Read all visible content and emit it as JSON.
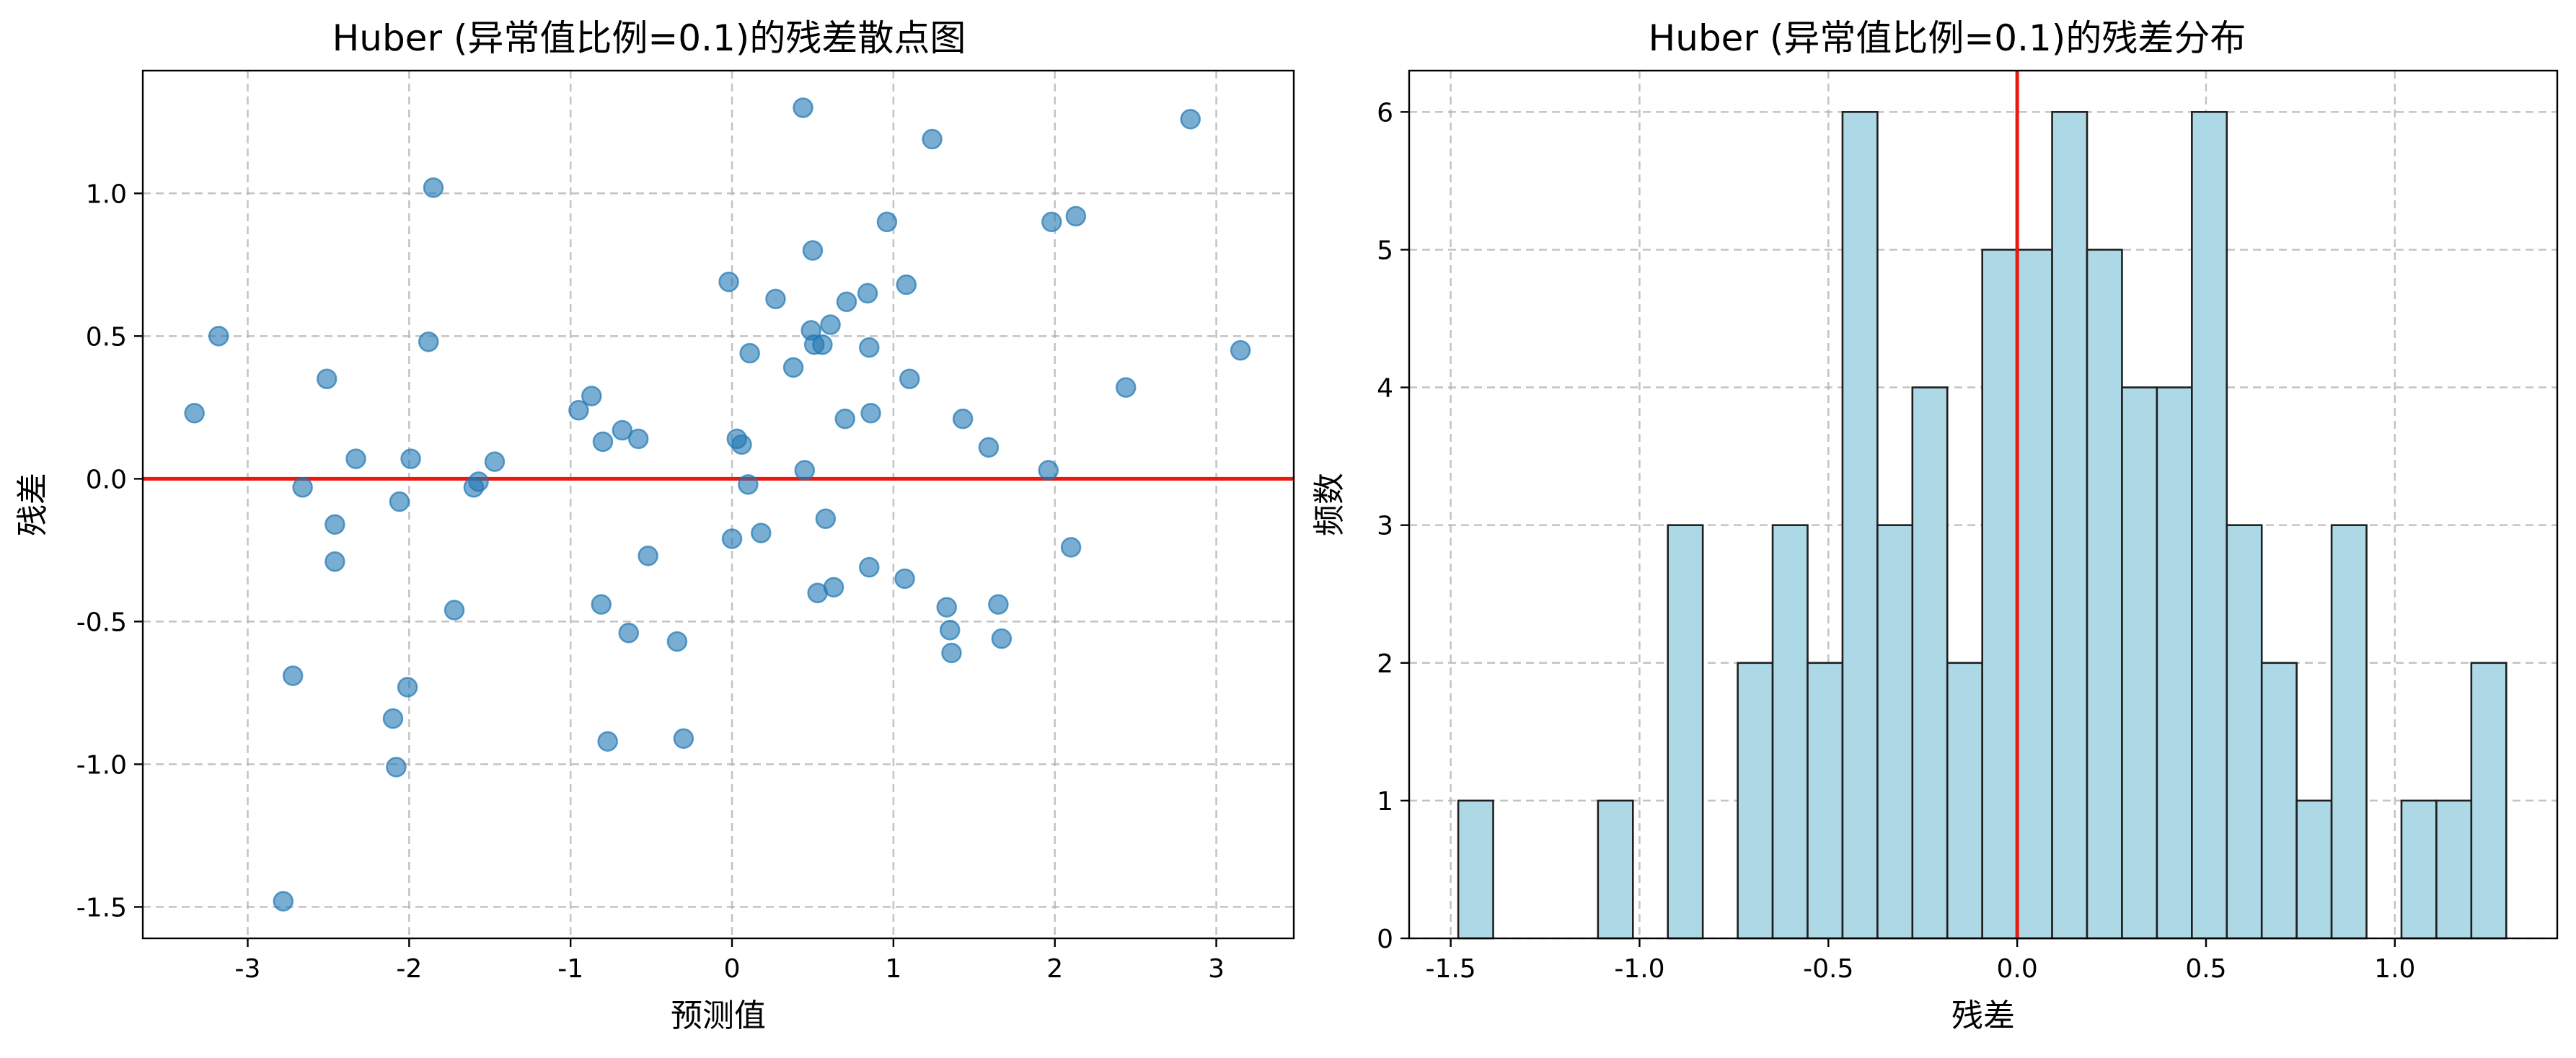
{
  "chart_data": [
    {
      "type": "scatter",
      "title": "Huber (异常值比例=0.1)的残差散点图",
      "xlabel": "预测值",
      "ylabel": "残差",
      "xlim": [
        -3.65,
        3.48
      ],
      "ylim": [
        -1.61,
        1.43
      ],
      "xticks": [
        -3,
        -2,
        -1,
        0,
        1,
        2,
        3
      ],
      "yticks": [
        -1.5,
        -1.0,
        -0.5,
        0.0,
        0.5,
        1.0
      ],
      "tick_labels_x": [
        "-3",
        "-2",
        "-1",
        "0",
        "1",
        "2",
        "3"
      ],
      "tick_labels_y": [
        "-1.5",
        "-1.0",
        "-0.5",
        "0.0",
        "0.5",
        "1.0"
      ],
      "grid": true,
      "reference_line": {
        "y": 0,
        "color": "#e8190f"
      },
      "point_color": "#1f77b4",
      "points": [
        {
          "x": -3.33,
          "y": 0.23
        },
        {
          "x": -3.18,
          "y": 0.5
        },
        {
          "x": -2.78,
          "y": -1.48
        },
        {
          "x": -2.72,
          "y": -0.69
        },
        {
          "x": -2.66,
          "y": -0.03
        },
        {
          "x": -2.51,
          "y": 0.35
        },
        {
          "x": -2.46,
          "y": -0.16
        },
        {
          "x": -2.46,
          "y": -0.29
        },
        {
          "x": -2.33,
          "y": 0.07
        },
        {
          "x": -2.1,
          "y": -0.84
        },
        {
          "x": -2.08,
          "y": -1.01
        },
        {
          "x": -2.06,
          "y": -0.08
        },
        {
          "x": -2.01,
          "y": -0.73
        },
        {
          "x": -1.99,
          "y": 0.07
        },
        {
          "x": -1.88,
          "y": 0.48
        },
        {
          "x": -1.85,
          "y": 1.02
        },
        {
          "x": -1.72,
          "y": -0.46
        },
        {
          "x": -1.6,
          "y": -0.03
        },
        {
          "x": -1.57,
          "y": -0.01
        },
        {
          "x": -1.47,
          "y": 0.06
        },
        {
          "x": -0.95,
          "y": 0.24
        },
        {
          "x": -0.87,
          "y": 0.29
        },
        {
          "x": -0.81,
          "y": -0.44
        },
        {
          "x": -0.8,
          "y": 0.13
        },
        {
          "x": -0.77,
          "y": -0.92
        },
        {
          "x": -0.68,
          "y": 0.17
        },
        {
          "x": -0.64,
          "y": -0.54
        },
        {
          "x": -0.58,
          "y": 0.14
        },
        {
          "x": -0.52,
          "y": -0.27
        },
        {
          "x": -0.34,
          "y": -0.57
        },
        {
          "x": -0.3,
          "y": -0.91
        },
        {
          "x": -0.02,
          "y": 0.69
        },
        {
          "x": 0.0,
          "y": -0.21
        },
        {
          "x": 0.03,
          "y": 0.14
        },
        {
          "x": 0.06,
          "y": 0.12
        },
        {
          "x": 0.1,
          "y": -0.02
        },
        {
          "x": 0.11,
          "y": 0.44
        },
        {
          "x": 0.18,
          "y": -0.19
        },
        {
          "x": 0.27,
          "y": 0.63
        },
        {
          "x": 0.38,
          "y": 0.39
        },
        {
          "x": 0.44,
          "y": 1.3
        },
        {
          "x": 0.45,
          "y": 0.03
        },
        {
          "x": 0.49,
          "y": 0.52
        },
        {
          "x": 0.5,
          "y": 0.8
        },
        {
          "x": 0.51,
          "y": 0.47
        },
        {
          "x": 0.53,
          "y": -0.4
        },
        {
          "x": 0.56,
          "y": 0.47
        },
        {
          "x": 0.58,
          "y": -0.14
        },
        {
          "x": 0.61,
          "y": 0.54
        },
        {
          "x": 0.63,
          "y": -0.38
        },
        {
          "x": 0.7,
          "y": 0.21
        },
        {
          "x": 0.71,
          "y": 0.62
        },
        {
          "x": 0.84,
          "y": 0.65
        },
        {
          "x": 0.85,
          "y": 0.46
        },
        {
          "x": 0.85,
          "y": -0.31
        },
        {
          "x": 0.86,
          "y": 0.23
        },
        {
          "x": 0.96,
          "y": 0.9
        },
        {
          "x": 1.07,
          "y": -0.35
        },
        {
          "x": 1.08,
          "y": 0.68
        },
        {
          "x": 1.1,
          "y": 0.35
        },
        {
          "x": 1.24,
          "y": 1.19
        },
        {
          "x": 1.33,
          "y": -0.45
        },
        {
          "x": 1.35,
          "y": -0.53
        },
        {
          "x": 1.36,
          "y": -0.61
        },
        {
          "x": 1.43,
          "y": 0.21
        },
        {
          "x": 1.59,
          "y": 0.11
        },
        {
          "x": 1.65,
          "y": -0.44
        },
        {
          "x": 1.67,
          "y": -0.56
        },
        {
          "x": 1.96,
          "y": 0.03
        },
        {
          "x": 1.98,
          "y": 0.9
        },
        {
          "x": 2.1,
          "y": -0.24
        },
        {
          "x": 2.13,
          "y": 0.92
        },
        {
          "x": 2.44,
          "y": 0.32
        },
        {
          "x": 2.84,
          "y": 1.26
        },
        {
          "x": 3.15,
          "y": 0.45
        }
      ]
    },
    {
      "type": "bar",
      "title": "Huber (异常值比例=0.1)的残差分布",
      "xlabel": "残差",
      "ylabel": "频数",
      "xlim": [
        -1.61,
        1.43
      ],
      "ylim": [
        0,
        6.3
      ],
      "xticks": [
        -1.5,
        -1.0,
        -0.5,
        0.0,
        0.5,
        1.0
      ],
      "yticks": [
        0,
        1,
        2,
        3,
        4,
        5,
        6
      ],
      "tick_labels_x": [
        "-1.5",
        "-1.0",
        "-0.5",
        "0.0",
        "0.5",
        "1.0"
      ],
      "tick_labels_y": [
        "0",
        "1",
        "2",
        "3",
        "4",
        "5",
        "6"
      ],
      "grid": true,
      "reference_line": {
        "x": 0,
        "color": "#e8190f"
      },
      "bar_color": "#add8e6",
      "edge_color": "#1f1f1f",
      "bin_start": -1.48,
      "bin_width": 0.0925,
      "counts": [
        1,
        0,
        0,
        0,
        1,
        0,
        3,
        0,
        2,
        3,
        2,
        6,
        3,
        4,
        2,
        5,
        5,
        6,
        5,
        4,
        4,
        6,
        3,
        2,
        1,
        3,
        0,
        1,
        1,
        2
      ]
    }
  ]
}
